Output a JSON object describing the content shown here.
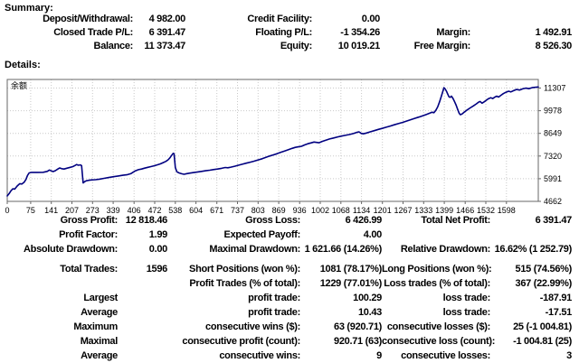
{
  "summary": {
    "heading": "Summary:",
    "rows": [
      [
        "Deposit/Withdrawal:",
        "4 982.00",
        "Credit Facility:",
        "0.00",
        "",
        ""
      ],
      [
        "Closed Trade P/L:",
        "6 391.47",
        "Floating P/L:",
        "-1 354.26",
        "Margin:",
        "1 492.91"
      ],
      [
        "Balance:",
        "11 373.47",
        "Equity:",
        "10 019.21",
        "Free Margin:",
        "8 526.30"
      ]
    ]
  },
  "details": {
    "heading": "Details:",
    "rows": [
      [
        "Gross Profit:",
        "12 818.46",
        "Gross Loss:",
        "6 426.99",
        "Total Net Profit:",
        "6 391.47"
      ],
      [
        "Profit Factor:",
        "1.99",
        "Expected Payoff:",
        "4.00",
        "",
        ""
      ],
      [
        "Absolute Drawdown:",
        "0.00",
        "Maximal Drawdown:",
        "1 621.66 (14.26%)",
        "Relative Drawdown:",
        "16.62% (1 252.79)"
      ],
      [
        "Total Trades:",
        "1596",
        "Short Positions (won %):",
        "1081 (78.17%)",
        "Long Positions (won %):",
        "515 (74.56%)"
      ],
      [
        "",
        "",
        "Profit Trades (% of total):",
        "1229 (77.01%)",
        "Loss trades (% of total):",
        "367 (22.99%)"
      ],
      [
        "Largest",
        "",
        "profit trade:",
        "100.29",
        "loss trade:",
        "-187.91"
      ],
      [
        "Average",
        "",
        "profit trade:",
        "10.43",
        "loss trade:",
        "-17.51"
      ],
      [
        "Maximum",
        "",
        "consecutive wins ($):",
        "63 (920.71)",
        "consecutive losses ($):",
        "25 (-1 004.81)"
      ],
      [
        "Maximal",
        "",
        "consecutive profit (count):",
        "920.71 (63)",
        "consecutive loss (count):",
        "-1 004.81 (25)"
      ],
      [
        "Average",
        "",
        "consecutive wins:",
        "9",
        "consecutive losses:",
        "3"
      ]
    ]
  },
  "chart_data": {
    "type": "line",
    "title": "余额",
    "xlabel": "",
    "ylabel": "",
    "x_domain": [
      0,
      1700
    ],
    "y_domain": [
      4662,
      11810
    ],
    "x_ticks": [
      0,
      75,
      141,
      207,
      273,
      339,
      406,
      472,
      538,
      604,
      671,
      737,
      803,
      869,
      936,
      1002,
      1068,
      1134,
      1201,
      1267,
      1333,
      1399,
      1466,
      1532,
      1598
    ],
    "y_ticks": [
      4662,
      5991,
      7320,
      8649,
      9978,
      11307
    ],
    "grid": true,
    "line_color": "#000080",
    "series": [
      {
        "name": "Balance",
        "points": [
          [
            0,
            4982
          ],
          [
            6,
            5120
          ],
          [
            12,
            5280
          ],
          [
            18,
            5400
          ],
          [
            24,
            5380
          ],
          [
            32,
            5560
          ],
          [
            40,
            5700
          ],
          [
            47,
            5680
          ],
          [
            54,
            5780
          ],
          [
            60,
            5950
          ],
          [
            65,
            6180
          ],
          [
            70,
            6330
          ],
          [
            78,
            6360
          ],
          [
            95,
            6360
          ],
          [
            115,
            6365
          ],
          [
            128,
            6420
          ],
          [
            135,
            6500
          ],
          [
            141,
            6450
          ],
          [
            147,
            6410
          ],
          [
            154,
            6460
          ],
          [
            162,
            6560
          ],
          [
            168,
            6620
          ],
          [
            174,
            6580
          ],
          [
            182,
            6560
          ],
          [
            192,
            6610
          ],
          [
            202,
            6660
          ],
          [
            210,
            6700
          ],
          [
            216,
            6760
          ],
          [
            222,
            6820
          ],
          [
            228,
            6780
          ],
          [
            234,
            6800
          ],
          [
            238,
            6760
          ],
          [
            243,
            5740
          ],
          [
            248,
            5820
          ],
          [
            253,
            5870
          ],
          [
            262,
            5900
          ],
          [
            272,
            5920
          ],
          [
            282,
            5935
          ],
          [
            295,
            5965
          ],
          [
            310,
            6010
          ],
          [
            325,
            6060
          ],
          [
            340,
            6110
          ],
          [
            355,
            6150
          ],
          [
            370,
            6190
          ],
          [
            385,
            6230
          ],
          [
            395,
            6280
          ],
          [
            402,
            6360
          ],
          [
            410,
            6450
          ],
          [
            420,
            6520
          ],
          [
            430,
            6560
          ],
          [
            440,
            6610
          ],
          [
            450,
            6660
          ],
          [
            460,
            6700
          ],
          [
            470,
            6750
          ],
          [
            480,
            6800
          ],
          [
            490,
            6860
          ],
          [
            500,
            6940
          ],
          [
            508,
            7010
          ],
          [
            515,
            7100
          ],
          [
            521,
            7220
          ],
          [
            526,
            7350
          ],
          [
            531,
            7480
          ],
          [
            534,
            7460
          ],
          [
            538,
            6650
          ],
          [
            543,
            6400
          ],
          [
            550,
            6330
          ],
          [
            558,
            6280
          ],
          [
            566,
            6250
          ],
          [
            575,
            6290
          ],
          [
            585,
            6320
          ],
          [
            597,
            6350
          ],
          [
            610,
            6390
          ],
          [
            622,
            6420
          ],
          [
            635,
            6455
          ],
          [
            648,
            6490
          ],
          [
            660,
            6525
          ],
          [
            673,
            6560
          ],
          [
            686,
            6600
          ],
          [
            698,
            6650
          ],
          [
            706,
            6630
          ],
          [
            716,
            6670
          ],
          [
            728,
            6720
          ],
          [
            740,
            6780
          ],
          [
            752,
            6840
          ],
          [
            765,
            6900
          ],
          [
            778,
            6960
          ],
          [
            790,
            7020
          ],
          [
            803,
            7090
          ],
          [
            816,
            7160
          ],
          [
            828,
            7240
          ],
          [
            840,
            7320
          ],
          [
            852,
            7390
          ],
          [
            863,
            7450
          ],
          [
            875,
            7530
          ],
          [
            888,
            7610
          ],
          [
            900,
            7690
          ],
          [
            912,
            7770
          ],
          [
            922,
            7830
          ],
          [
            932,
            7860
          ],
          [
            942,
            7890
          ],
          [
            952,
            7970
          ],
          [
            962,
            8040
          ],
          [
            972,
            8090
          ],
          [
            982,
            8140
          ],
          [
            990,
            8120
          ],
          [
            998,
            8100
          ],
          [
            1008,
            8180
          ],
          [
            1020,
            8250
          ],
          [
            1032,
            8320
          ],
          [
            1045,
            8380
          ],
          [
            1058,
            8440
          ],
          [
            1070,
            8490
          ],
          [
            1082,
            8530
          ],
          [
            1095,
            8580
          ],
          [
            1108,
            8640
          ],
          [
            1118,
            8700
          ],
          [
            1126,
            8740
          ],
          [
            1133,
            8650
          ],
          [
            1140,
            8620
          ],
          [
            1150,
            8670
          ],
          [
            1162,
            8740
          ],
          [
            1175,
            8810
          ],
          [
            1188,
            8880
          ],
          [
            1200,
            8940
          ],
          [
            1213,
            9010
          ],
          [
            1226,
            9080
          ],
          [
            1239,
            9150
          ],
          [
            1252,
            9220
          ],
          [
            1265,
            9290
          ],
          [
            1278,
            9370
          ],
          [
            1291,
            9450
          ],
          [
            1304,
            9530
          ],
          [
            1317,
            9600
          ],
          [
            1330,
            9680
          ],
          [
            1342,
            9760
          ],
          [
            1352,
            9830
          ],
          [
            1360,
            9890
          ],
          [
            1366,
            9860
          ],
          [
            1372,
            10000
          ],
          [
            1378,
            10200
          ],
          [
            1384,
            10500
          ],
          [
            1390,
            10850
          ],
          [
            1395,
            11150
          ],
          [
            1398,
            11330
          ],
          [
            1402,
            11250
          ],
          [
            1406,
            11120
          ],
          [
            1410,
            10950
          ],
          [
            1414,
            10800
          ],
          [
            1418,
            10760
          ],
          [
            1422,
            10830
          ],
          [
            1427,
            10700
          ],
          [
            1432,
            10500
          ],
          [
            1437,
            10300
          ],
          [
            1442,
            10050
          ],
          [
            1447,
            9820
          ],
          [
            1451,
            9740
          ],
          [
            1456,
            9790
          ],
          [
            1463,
            9900
          ],
          [
            1472,
            10020
          ],
          [
            1482,
            10140
          ],
          [
            1492,
            10260
          ],
          [
            1502,
            10380
          ],
          [
            1509,
            10480
          ],
          [
            1514,
            10520
          ],
          [
            1520,
            10420
          ],
          [
            1527,
            10500
          ],
          [
            1534,
            10600
          ],
          [
            1541,
            10690
          ],
          [
            1548,
            10740
          ],
          [
            1554,
            10690
          ],
          [
            1561,
            10780
          ],
          [
            1567,
            10830
          ],
          [
            1573,
            10780
          ],
          [
            1580,
            10880
          ],
          [
            1588,
            10980
          ],
          [
            1596,
            11060
          ],
          [
            1605,
            11120
          ],
          [
            1612,
            11080
          ],
          [
            1620,
            11150
          ],
          [
            1630,
            11220
          ],
          [
            1640,
            11190
          ],
          [
            1650,
            11260
          ],
          [
            1660,
            11300
          ],
          [
            1670,
            11270
          ],
          [
            1680,
            11330
          ],
          [
            1690,
            11350
          ],
          [
            1700,
            11373
          ]
        ]
      }
    ]
  }
}
